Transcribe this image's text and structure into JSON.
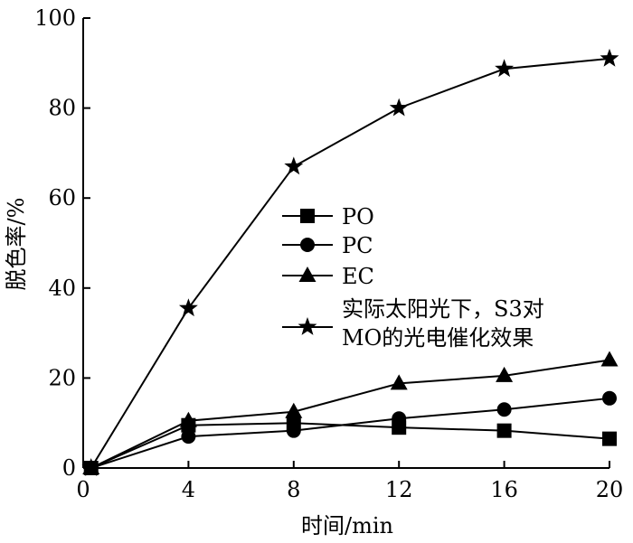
{
  "chart_data": {
    "type": "line",
    "title": "",
    "xlabel": "时间/min",
    "ylabel": "脱色率/%",
    "xlim": [
      0,
      20
    ],
    "ylim": [
      0,
      100
    ],
    "xticks": [
      0,
      4,
      8,
      12,
      16,
      20
    ],
    "yticks": [
      0,
      20,
      40,
      60,
      80,
      100
    ],
    "grid": false,
    "legend_placement": "center",
    "series": [
      {
        "name": "PO",
        "marker": "square",
        "x": [
          0.3,
          4,
          8,
          12,
          16,
          20
        ],
        "y": [
          0,
          9.5,
          10,
          9,
          8.3,
          6.5
        ]
      },
      {
        "name": "PC",
        "marker": "circle",
        "x": [
          0.3,
          4,
          8,
          12,
          16,
          20
        ],
        "y": [
          0,
          7,
          8.3,
          11,
          13,
          15.5
        ]
      },
      {
        "name": "EC",
        "marker": "triangle",
        "x": [
          0.3,
          4,
          8,
          12,
          16,
          20
        ],
        "y": [
          0,
          10.5,
          12.5,
          18.8,
          20.5,
          24
        ]
      },
      {
        "name": "实际太阳光下，S3对MO的光电催化效果",
        "marker": "star",
        "name_lines": [
          "实际太阳光下，S3对",
          "MO的光电催化效果"
        ],
        "x": [
          0.3,
          4,
          8,
          12,
          16,
          20
        ],
        "y": [
          0,
          35.5,
          67,
          80,
          88.7,
          91
        ]
      }
    ]
  }
}
